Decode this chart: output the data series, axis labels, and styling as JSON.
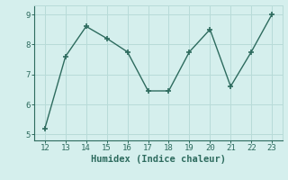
{
  "x": [
    12,
    13,
    14,
    15,
    16,
    17,
    18,
    19,
    20,
    21,
    22,
    23
  ],
  "y": [
    5.2,
    7.6,
    8.6,
    8.2,
    7.75,
    6.45,
    6.45,
    7.75,
    8.5,
    6.6,
    7.75,
    9.0
  ],
  "xlabel": "Humidex (Indice chaleur)",
  "ylim": [
    4.8,
    9.3
  ],
  "xlim": [
    11.5,
    23.5
  ],
  "yticks": [
    5,
    6,
    7,
    8,
    9
  ],
  "xticks": [
    12,
    13,
    14,
    15,
    16,
    17,
    18,
    19,
    20,
    21,
    22,
    23
  ],
  "line_color": "#2d6b5e",
  "marker": "+",
  "background_color": "#d5efed",
  "grid_color": "#b8dbd8",
  "tick_color": "#2d6b5e",
  "label_color": "#2d6b5e",
  "font_family": "monospace",
  "linewidth": 1.0,
  "markersize": 4,
  "markeredgewidth": 1.2,
  "tick_labelsize": 6.5,
  "xlabel_fontsize": 7.5
}
